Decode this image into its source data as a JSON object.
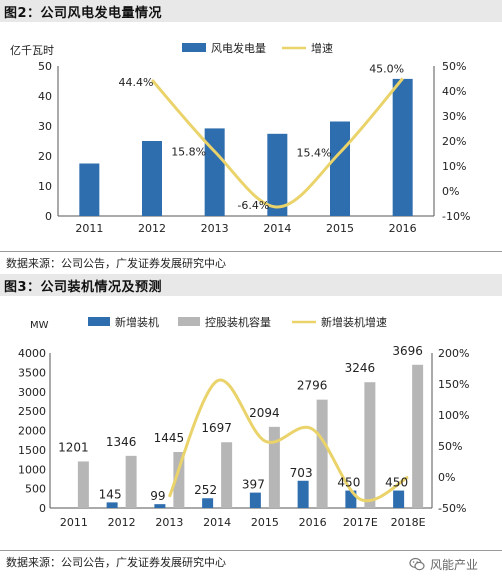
{
  "figure2": {
    "title": "图2：公司风电发电量情况",
    "source": "数据来源：公司公告，广发证券发展研究中心"
  },
  "figure3": {
    "title": "图3：公司装机情况及预测",
    "source": "数据来源：公司公告，广发证券发展研究中心"
  },
  "watermark": {
    "text": "风能产业",
    "icon": "wechat-icon"
  },
  "colors": {
    "bar_blue": "#2e6dae",
    "bar_gray": "#b6b6b6",
    "line_yellow": "#ead36a",
    "header_bg": "#e8e8e8"
  },
  "chart_data": [
    {
      "type": "bar",
      "combo": "bar+line",
      "unit_label": "亿千瓦时",
      "categories": [
        "2011",
        "2012",
        "2013",
        "2014",
        "2015",
        "2016"
      ],
      "series": [
        {
          "name": "风电发电量",
          "type": "bar",
          "axis": "left",
          "values": [
            17.5,
            25,
            29.2,
            27.4,
            31.5,
            45.7
          ]
        },
        {
          "name": "增速",
          "type": "line",
          "axis": "right",
          "values": [
            null,
            44.4,
            15.8,
            -6.4,
            15.4,
            45.0
          ],
          "labels": [
            "",
            "44.4%",
            "15.8%",
            "-6.4%",
            "15.4%",
            "45.0%"
          ]
        }
      ],
      "ylim": [
        0,
        50
      ],
      "yticks": [
        "0",
        "10",
        "20",
        "30",
        "40",
        "50"
      ],
      "y2lim": [
        -10,
        50
      ],
      "y2ticks": [
        "-10%",
        "0%",
        "10%",
        "20%",
        "30%",
        "40%",
        "50%"
      ],
      "legend": "top"
    },
    {
      "type": "bar",
      "combo": "bar+line",
      "unit_label": "MW",
      "categories": [
        "2011",
        "2012",
        "2013",
        "2014",
        "2015",
        "2016",
        "2017E",
        "2018E"
      ],
      "series": [
        {
          "name": "新增装机",
          "type": "bar",
          "axis": "left",
          "values": [
            0,
            145,
            99,
            252,
            397,
            703,
            450,
            450
          ],
          "labels": [
            "",
            "145",
            "99",
            "252",
            "397",
            "703",
            "450",
            "450"
          ]
        },
        {
          "name": "控股装机容量",
          "type": "bar",
          "axis": "left",
          "values": [
            1201,
            1346,
            1445,
            1697,
            2094,
            2796,
            3246,
            3696
          ],
          "labels": [
            "1201",
            "1346",
            "1445",
            "1697",
            "2094",
            "2796",
            "3246",
            "3696"
          ]
        },
        {
          "name": "新增装机增速",
          "type": "line",
          "axis": "right",
          "values": [
            null,
            null,
            -32,
            155,
            58,
            77,
            -36,
            0
          ]
        }
      ],
      "ylim": [
        0,
        4000
      ],
      "yticks": [
        "0",
        "500",
        "1000",
        "1500",
        "2000",
        "2500",
        "3000",
        "3500",
        "4000"
      ],
      "y2lim": [
        -50,
        200
      ],
      "y2ticks": [
        "-50%",
        "0%",
        "50%",
        "100%",
        "150%",
        "200%"
      ],
      "legend": "top"
    }
  ]
}
